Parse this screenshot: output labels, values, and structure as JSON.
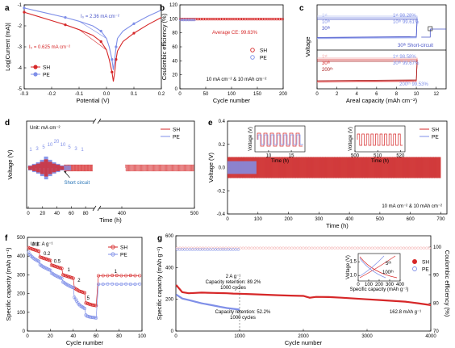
{
  "colors": {
    "sh": "#d62728",
    "pe": "#7f8fe8",
    "pe_dark": "#4a56c8",
    "red_light": "#f2a3a3",
    "pe_light": "#b9c3f2",
    "short_mark": "#1f6fb4"
  },
  "chart_data": [
    {
      "id": "a",
      "panel_label": "a",
      "type": "line",
      "xlabel": "Potential (V)",
      "ylabel": "Log|Current (mA)|",
      "xlim": [
        -0.3,
        0.2
      ],
      "ylim": [
        -5,
        -1
      ],
      "xticks": [
        "-0.3",
        "-0.2",
        "-0.1",
        "0.0",
        "0.1",
        "0.2"
      ],
      "yticks": [
        "-5",
        "-4",
        "-3",
        "-2",
        "-1"
      ],
      "annotations": [
        "I₀ = 2.36 mA cm⁻²",
        "I₀ = 0.625 mA cm⁻²"
      ],
      "series": [
        {
          "name": "SH",
          "x": [
            -0.3,
            -0.25,
            -0.2,
            -0.15,
            -0.1,
            -0.05,
            -0.02,
            0.0,
            0.01,
            0.02,
            0.025,
            0.03,
            0.035,
            0.04,
            0.06,
            0.1,
            0.15,
            0.2
          ],
          "y": [
            -1.35,
            -1.55,
            -1.75,
            -1.95,
            -2.18,
            -2.45,
            -2.75,
            -3.15,
            -3.6,
            -4.2,
            -4.65,
            -4.2,
            -3.6,
            -3.2,
            -2.75,
            -2.35,
            -1.95,
            -1.6
          ]
        },
        {
          "name": "PE",
          "x": [
            -0.3,
            -0.25,
            -0.2,
            -0.15,
            -0.1,
            -0.05,
            -0.02,
            0.0,
            0.01,
            0.02,
            0.025,
            0.03,
            0.035,
            0.04,
            0.06,
            0.1,
            0.15,
            0.2
          ],
          "y": [
            -1.15,
            -1.3,
            -1.45,
            -1.6,
            -1.78,
            -2.0,
            -2.25,
            -2.6,
            -3.0,
            -3.6,
            -4.1,
            -3.6,
            -3.0,
            -2.6,
            -2.25,
            -1.9,
            -1.55,
            -1.25
          ]
        }
      ]
    },
    {
      "id": "b",
      "panel_label": "b",
      "type": "scatter",
      "xlabel": "Cycle number",
      "ylabel": "Coulombic efficiency (%)",
      "xlim": [
        0,
        200
      ],
      "ylim": [
        0,
        120
      ],
      "xticks": [
        "0",
        "50",
        "100",
        "150",
        "200"
      ],
      "yticks": [
        "0",
        "20",
        "40",
        "60",
        "80",
        "100",
        "120"
      ],
      "annotations": [
        "Average CE: 99.63%",
        "10 mA cm⁻² & 10 mAh cm⁻²"
      ],
      "series": [
        {
          "name": "SH",
          "x_start": 1,
          "x_end": 200,
          "y": 99.63
        },
        {
          "name": "PE",
          "x_start": 1,
          "x_end": 30,
          "y": 98.5
        }
      ]
    },
    {
      "id": "c",
      "panel_label": "c",
      "type": "line",
      "xlabel": "Areal capacity (mAh cm⁻²)",
      "ylabel": "Voltage",
      "xlim": [
        0,
        13
      ],
      "xticks": [
        "0",
        "2",
        "4",
        "6",
        "8",
        "10",
        "12"
      ],
      "cycle_labels_pe": [
        "1ˢᵗ",
        "10ᵗʰ",
        "30ᵗʰ"
      ],
      "ce_pe": [
        "1ˢᵗ 98.28%",
        "10ᵗʰ 99.61%"
      ],
      "short_label": "30ᵗʰ Short-circuit",
      "cycle_labels_sh": [
        "1ˢᵗ",
        "30ᵗʰ",
        "200ᵗʰ"
      ],
      "ce_sh": [
        "1ˢᵗ 98.58%",
        "30ᵗʰ 99.67%"
      ],
      "ce_sh_200": "200ᵗʰ 99.53%",
      "short_circuit_capacity": 11.4
    },
    {
      "id": "d",
      "panel_label": "d",
      "type": "line",
      "xlabel": "Time (h)",
      "ylabel": "Voltage (V)",
      "unit_label": "Unit: mA cm⁻²",
      "xticks": [
        "0",
        "20",
        "40",
        "60",
        "80",
        "400",
        "500"
      ],
      "rate_labels": [
        "1",
        "3",
        "5",
        "10",
        "20",
        "10",
        "5",
        "3",
        "1"
      ],
      "short_label": "Short circuit",
      "series": [
        {
          "name": "SH"
        },
        {
          "name": "PE"
        }
      ]
    },
    {
      "id": "e",
      "panel_label": "e",
      "type": "line",
      "xlabel": "Time (h)",
      "ylabel": "Voltage (V)",
      "xlim": [
        0,
        720
      ],
      "ylim": [
        -0.4,
        0.4
      ],
      "xticks": [
        "0",
        "100",
        "200",
        "300",
        "400",
        "500",
        "600",
        "700"
      ],
      "yticks": [
        "-0.4",
        "-0.2",
        "0.0",
        "0.2",
        "0.4"
      ],
      "annotations": [
        "10 mA cm⁻² & 10 mAh cm⁻²"
      ],
      "inset1": {
        "ylabel": "Voltage (V)",
        "xlabel": "Time (h)",
        "xticks": [
          "10",
          "15"
        ],
        "xlim": [
          7,
          18
        ]
      },
      "inset2": {
        "ylabel": "Voltage (V)",
        "xlabel": "Time (h)",
        "xticks": [
          "500",
          "510",
          "520"
        ],
        "xlim": [
          500,
          522
        ]
      },
      "series": [
        {
          "name": "SH"
        },
        {
          "name": "PE",
          "x_end": 95
        }
      ]
    },
    {
      "id": "f",
      "panel_label": "f",
      "type": "line",
      "xlabel": "Cycle number",
      "ylabel": "Specific capacity (mAh g⁻¹)",
      "unit_label": "Unit: A g⁻¹",
      "xlim": [
        0,
        100
      ],
      "ylim": [
        0,
        500
      ],
      "xticks": [
        "0",
        "20",
        "40",
        "60",
        "80",
        "100"
      ],
      "yticks": [
        "0",
        "100",
        "200",
        "300",
        "400",
        "500"
      ],
      "rate_labels": [
        "0.1",
        "0.2",
        "0.5",
        "1",
        "2",
        "5",
        "1"
      ],
      "series": [
        {
          "name": "SH",
          "x": [
            1,
            2,
            3,
            4,
            5,
            6,
            7,
            8,
            9,
            10,
            11,
            12,
            13,
            14,
            15,
            16,
            17,
            18,
            19,
            20,
            21,
            22,
            23,
            24,
            25,
            26,
            27,
            28,
            29,
            30,
            31,
            32,
            33,
            34,
            35,
            36,
            37,
            38,
            39,
            40,
            41,
            42,
            43,
            44,
            45,
            46,
            47,
            48,
            49,
            50,
            51,
            52,
            53,
            54,
            55,
            56,
            57,
            58,
            59,
            60,
            62,
            66,
            70,
            74,
            78,
            82,
            86,
            90,
            94,
            98
          ],
          "y": [
            445,
            442,
            440,
            438,
            436,
            434,
            432,
            430,
            428,
            426,
            395,
            393,
            391,
            389,
            387,
            385,
            383,
            381,
            379,
            377,
            352,
            350,
            348,
            346,
            344,
            342,
            340,
            338,
            336,
            334,
            300,
            298,
            296,
            294,
            292,
            290,
            288,
            286,
            284,
            282,
            230,
            226,
            222,
            218,
            214,
            212,
            210,
            208,
            206,
            204,
            150,
            148,
            146,
            144,
            142,
            140,
            139,
            138,
            137,
            136,
            295,
            296,
            296,
            297,
            297,
            296,
            296,
            297,
            296,
            296
          ]
        },
        {
          "name": "PE",
          "x": [
            1,
            2,
            3,
            4,
            5,
            6,
            7,
            8,
            9,
            10,
            11,
            12,
            13,
            14,
            15,
            16,
            17,
            18,
            19,
            20,
            21,
            22,
            23,
            24,
            25,
            26,
            27,
            28,
            29,
            30,
            31,
            32,
            33,
            34,
            35,
            36,
            37,
            38,
            39,
            40,
            41,
            42,
            43,
            44,
            45,
            46,
            47,
            48,
            49,
            50,
            51,
            52,
            53,
            54,
            55,
            56,
            57,
            58,
            59,
            60,
            62,
            66,
            70,
            74,
            78,
            82,
            86,
            90,
            94,
            98
          ],
          "y": [
            420,
            410,
            402,
            396,
            390,
            386,
            382,
            378,
            375,
            372,
            355,
            350,
            346,
            342,
            339,
            336,
            333,
            330,
            327,
            325,
            310,
            306,
            302,
            298,
            295,
            292,
            289,
            286,
            283,
            281,
            262,
            258,
            254,
            250,
            246,
            243,
            240,
            237,
            234,
            232,
            180,
            170,
            160,
            150,
            142,
            136,
            132,
            128,
            124,
            120,
            85,
            80,
            78,
            76,
            75,
            74,
            73,
            72,
            71,
            70,
            250,
            250,
            251,
            251,
            250,
            250,
            251,
            250,
            250,
            251
          ]
        }
      ]
    },
    {
      "id": "g",
      "panel_label": "g",
      "type": "line",
      "xlabel": "Cycle number",
      "ylabel": "Specific capacity (mAh g⁻¹)",
      "ylabel_right": "Coulombic efficiency (%)",
      "xlim": [
        0,
        4000
      ],
      "ylim": [
        0,
        600
      ],
      "ylim_right": [
        70,
        100
      ],
      "xticks": [
        "0",
        "1000",
        "2000",
        "3000",
        "4000"
      ],
      "yticks": [
        "0",
        "200",
        "400",
        "600"
      ],
      "yticks_right": [
        "70",
        "80",
        "90",
        "100"
      ],
      "annotations": [
        "2 A g⁻¹",
        "Capacity retention: 89.2%",
        "1000 cycles",
        "Capacity retention: 52.2%",
        "1000 cycles",
        "162.8 mAh g⁻¹"
      ],
      "inset": {
        "xlabel": "Specific capacity (mAh g⁻¹)",
        "ylabel": "Voltage (V)",
        "xticks": [
          "0",
          "100",
          "200",
          "300",
          "400"
        ],
        "yticks": [
          "1.0",
          "1.5"
        ],
        "labels": [
          "5ᵗʰ",
          "100ᵗʰ"
        ]
      },
      "series": [
        {
          "name": "SH",
          "x": [
            5,
            100,
            200,
            300,
            400,
            500,
            600,
            700,
            800,
            900,
            1000,
            1200,
            1400,
            1600,
            1800,
            2000,
            2100,
            2200,
            2400,
            2600,
            2800,
            3000,
            3200,
            3400,
            3600,
            3800,
            4000
          ],
          "y": [
            290,
            245,
            238,
            240,
            242,
            241,
            240,
            239,
            238,
            236,
            235,
            232,
            229,
            226,
            223,
            221,
            210,
            215,
            214,
            210,
            205,
            200,
            195,
            190,
            185,
            175,
            163
          ]
        },
        {
          "name": "PE",
          "x": [
            5,
            100,
            200,
            300,
            400,
            500,
            600,
            700,
            800,
            900,
            1000
          ],
          "y": [
            230,
            205,
            195,
            185,
            175,
            168,
            160,
            152,
            145,
            140,
            135
          ]
        }
      ]
    }
  ]
}
